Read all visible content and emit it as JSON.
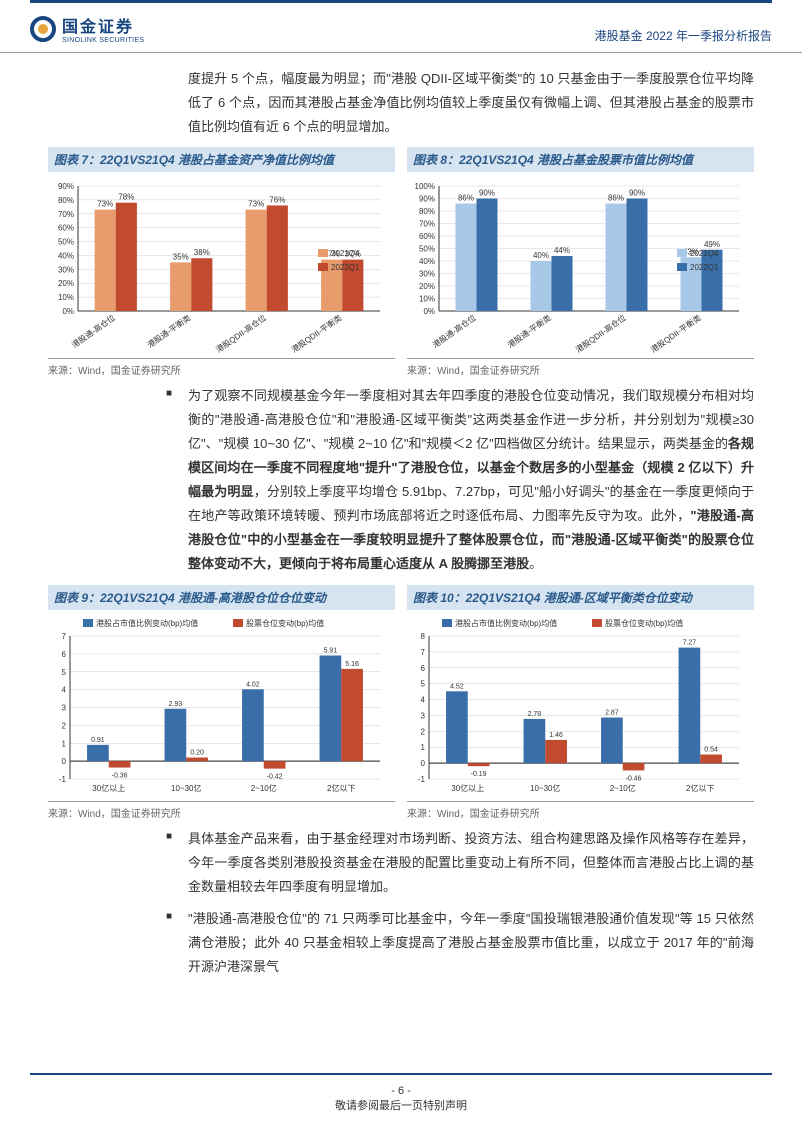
{
  "header": {
    "logo_cn": "国金证券",
    "logo_en": "SINOLINK SECURITIES",
    "doc_title": "港股基金 2022 年一季报分析报告"
  },
  "para1": "度提升 5 个点，幅度最为明显；而\"港股 QDII-区域平衡类\"的 10 只基金由于一季度股票仓位平均降低了 6 个点，因而其港股占基金净值比例均值较上季度虽仅有微幅上调、但其港股占基金的股票市值比例均值有近 6 个点的明显增加。",
  "chart7": {
    "title": "图表 7：22Q1VS21Q4 港股占基金资产净值比例均值",
    "source": "来源：Wind，国金证券研究所",
    "type": "bar",
    "categories": [
      "港股通-高仓位",
      "港股通-平衡类",
      "港股QDII-高仓位",
      "港股QDII-平衡类"
    ],
    "series": [
      {
        "name": "2021Q4",
        "color": "#e89b6b",
        "values": [
          73,
          35,
          73,
          37
        ],
        "labels": [
          "73%",
          "35%",
          "73%",
          "37%"
        ]
      },
      {
        "name": "2022Q1",
        "color": "#c24a2f",
        "values": [
          78,
          38,
          76,
          37
        ],
        "labels": [
          "78%",
          "38%",
          "76%",
          "37%"
        ]
      }
    ],
    "ylim": [
      0,
      90
    ],
    "ytick_step": 10,
    "bg": "#ffffff",
    "grid": "#d0d0d0",
    "axis_fontsize": 8,
    "label_fontsize": 8
  },
  "chart8": {
    "title": "图表 8：22Q1VS21Q4 港股占基金股票市值比例均值",
    "source": "来源：Wind，国金证券研究所",
    "type": "bar",
    "categories": [
      "港股通-高仓位",
      "港股通-平衡类",
      "港股QDII-高仓位",
      "港股QDII-平衡类"
    ],
    "series": [
      {
        "name": "2021Q4",
        "color": "#a8c8e8",
        "values": [
          86,
          40,
          86,
          43
        ],
        "labels": [
          "86%",
          "40%",
          "86%",
          "43%"
        ]
      },
      {
        "name": "2022Q1",
        "color": "#3a6ea8",
        "values": [
          90,
          44,
          90,
          49
        ],
        "labels": [
          "90%",
          "44%",
          "90%",
          "49%"
        ]
      }
    ],
    "ylim": [
      0,
      100
    ],
    "ytick_step": 10,
    "bg": "#ffffff",
    "grid": "#d0d0d0",
    "axis_fontsize": 8,
    "label_fontsize": 8
  },
  "para2_pre": "为了观察不同规模基金今年一季度相对其去年四季度的港股仓位变动情况，我们取规模分布相对均衡的\"港股通-高港股仓位\"和\"港股通-区域平衡类\"这两类基金作进一步分析，并分别划为\"规模≥30 亿\"、\"规模 10~30 亿\"、\"规模 2~10 亿\"和\"规模＜2 亿\"四档做区分统计。结果显示，两类基金的",
  "para2_bold1": "各规模区间均在一季度不同程度地\"提升\"了港股仓位，以基金个数居多的小型基金（规模 2 亿以下）升幅最为明显",
  "para2_mid": "，分别较上季度平均增仓 5.91bp、7.27bp，可见\"船小好调头\"的基金在一季度更倾向于在地产等政策环境转暖、预判市场底部将近之时逐低布局、力图率先反守为攻。此外，",
  "para2_bold2": "\"港股通-高港股仓位\"中的小型基金在一季度较明显提升了整体股票仓位，而\"港股通-区域平衡类\"的股票仓位整体变动不大，更倾向于将布局重心适度从 A 股腾挪至港股",
  "para2_end": "。",
  "chart9": {
    "title": "图表 9：22Q1VS21Q4 港股通-高港股仓位仓位变动",
    "source": "来源：Wind，国金证券研究所",
    "type": "bar",
    "categories": [
      "30亿以上",
      "10~30亿",
      "2~10亿",
      "2亿以下"
    ],
    "series": [
      {
        "name": "港股占市值比例变动(bp)均值",
        "color": "#3a6ea8",
        "values": [
          0.91,
          2.93,
          4.02,
          5.91
        ],
        "labels": [
          "0.91",
          "2.93",
          "4.02",
          "5.91"
        ]
      },
      {
        "name": "股票仓位变动(bp)均值",
        "color": "#c24a2f",
        "values": [
          -0.36,
          0.2,
          -0.42,
          5.16
        ],
        "labels": [
          "-0.36",
          "0.20",
          "-0.42",
          "5.16"
        ]
      }
    ],
    "ylim": [
      -1,
      7
    ],
    "ytick_step": 1,
    "bg": "#ffffff",
    "grid": "#d0d0d0",
    "axis_fontsize": 8,
    "label_fontsize": 7
  },
  "chart10": {
    "title": "图表 10：22Q1VS21Q4 港股通-区域平衡类仓位变动",
    "source": "来源：Wind，国金证券研究所",
    "type": "bar",
    "categories": [
      "30亿以上",
      "10~30亿",
      "2~10亿",
      "2亿以下"
    ],
    "series": [
      {
        "name": "港股占市值比例变动(bp)均值",
        "color": "#3a6ea8",
        "values": [
          4.52,
          2.78,
          2.87,
          7.27
        ],
        "labels": [
          "4.52",
          "2.78",
          "2.87",
          "7.27"
        ]
      },
      {
        "name": "股票仓位变动(bp)均值",
        "color": "#c24a2f",
        "values": [
          -0.19,
          1.46,
          -0.46,
          0.54
        ],
        "labels": [
          "-0.19",
          "1.46",
          "-0.46",
          "0.54"
        ]
      }
    ],
    "ylim": [
      -1,
      8
    ],
    "ytick_step": 1,
    "bg": "#ffffff",
    "grid": "#d0d0d0",
    "axis_fontsize": 8,
    "label_fontsize": 7
  },
  "para3": "具体基金产品来看，由于基金经理对市场判断、投资方法、组合构建思路及操作风格等存在差异，今年一季度各类别港股投资基金在港股的配置比重变动上有所不同，但整体而言港股占比上调的基金数量相较去年四季度有明显增加。",
  "para4": "\"港股通-高港股仓位\"的 71 只两季可比基金中，今年一季度\"国投瑞银港股通价值发现\"等 15 只依然满仓港股；此外 40 只基金相较上季度提高了港股占基金股票市值比重，以成立于 2017 年的\"前海开源沪港深景气",
  "footer": {
    "page": "- 6 -",
    "disclaimer": "敬请参阅最后一页特别声明"
  }
}
